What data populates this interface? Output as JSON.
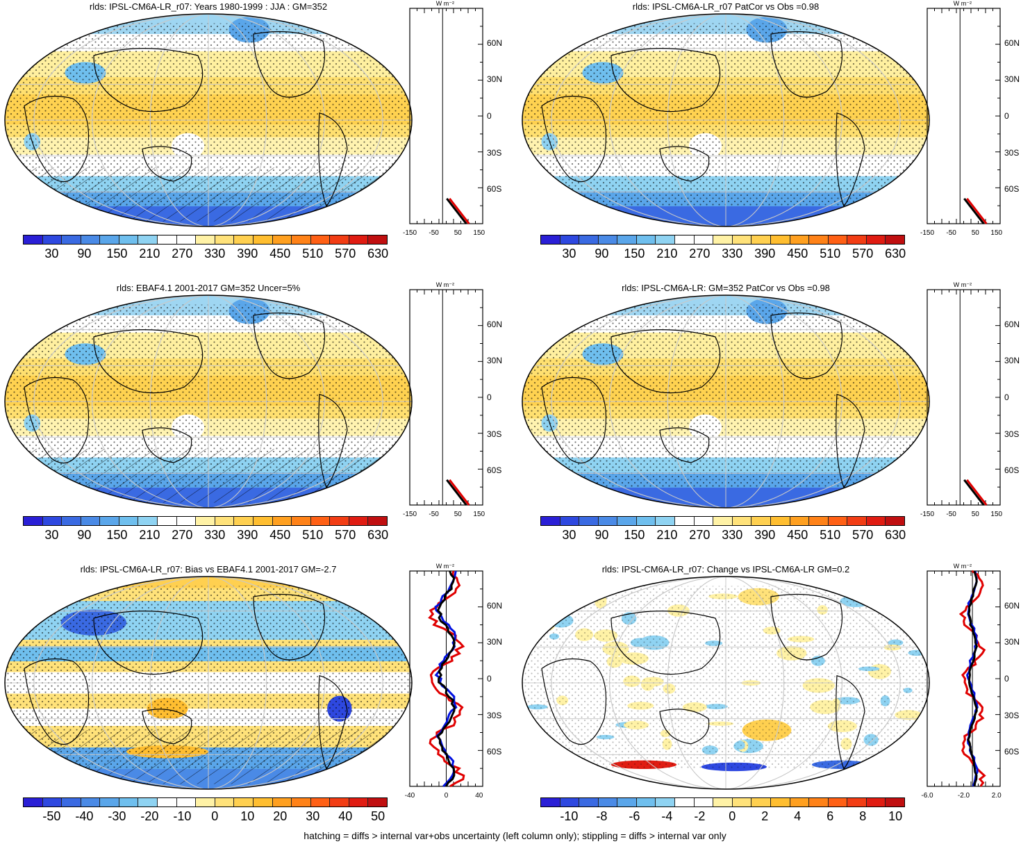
{
  "footer": "hatching = diffs > internal var+obs uncertainty (left column only); stippling = diffs > internal var only",
  "profile_unit": "W m⁻²",
  "lat_labels": [
    "60N",
    "30N",
    "0",
    "30S",
    "60S"
  ],
  "colors": {
    "abs_scale": [
      "#2a1fd6",
      "#2e48e0",
      "#3a6ae2",
      "#4a8ae6",
      "#5aa6ea",
      "#6fbfee",
      "#8fd3f2",
      "#ffffff",
      "#ffffff",
      "#fff2a6",
      "#ffe27a",
      "#ffd050",
      "#ffbe30",
      "#ffa020",
      "#ff8218",
      "#ff6015",
      "#f23d14",
      "#e01c12",
      "#c00f10"
    ],
    "bias_scale": [
      "#2a1fd6",
      "#2e48e0",
      "#3a6ae2",
      "#4a8ae6",
      "#5aa6ea",
      "#6fbfee",
      "#8fd3f2",
      "#ffffff",
      "#ffffff",
      "#fff2a6",
      "#ffe27a",
      "#ffd050",
      "#ffbe30",
      "#ffa020",
      "#ff8218",
      "#ff6015",
      "#f23d14",
      "#e01c12",
      "#c00f10"
    ],
    "land_outline": "#000000",
    "grid": "#c8c8c8"
  },
  "panels": [
    {
      "title": "rlds: IPSL-CM6A-LR_r07: Years 1980-1999 : JJA : GM=352",
      "cb_labels": [
        "30",
        "90",
        "150",
        "210",
        "270",
        "330",
        "390",
        "450",
        "510",
        "570",
        "630"
      ],
      "x_ticks": [
        "-150",
        "-50",
        "50",
        "150"
      ],
      "kind": "abs"
    },
    {
      "title": "rlds: IPSL-CM6A-LR_r07 PatCor vs Obs =0.98",
      "cb_labels": [
        "30",
        "90",
        "150",
        "210",
        "270",
        "330",
        "390",
        "450",
        "510",
        "570",
        "630"
      ],
      "x_ticks": [
        "-150",
        "-50",
        "50",
        "150"
      ],
      "kind": "abs"
    },
    {
      "title": "rlds: EBAF4.1 2001-2017 GM=352 Uncer=5%",
      "cb_labels": [
        "30",
        "90",
        "150",
        "210",
        "270",
        "330",
        "390",
        "450",
        "510",
        "570",
        "630"
      ],
      "x_ticks": [
        "-150",
        "-50",
        "50",
        "150"
      ],
      "kind": "abs"
    },
    {
      "title": "rlds: IPSL-CM6A-LR: GM=352 PatCor vs Obs =0.98",
      "cb_labels": [
        "30",
        "90",
        "150",
        "210",
        "270",
        "330",
        "390",
        "450",
        "510",
        "570",
        "630"
      ],
      "x_ticks": [
        "-150",
        "-50",
        "50",
        "150"
      ],
      "kind": "abs"
    },
    {
      "title": "rlds: IPSL-CM6A-LR_r07: Bias vs EBAF4.1 2001-2017 GM=-2.7",
      "cb_labels": [
        "-50",
        "-40",
        "-30",
        "-20",
        "-10",
        "0",
        "10",
        "20",
        "30",
        "40",
        "50"
      ],
      "x_ticks": [
        "-40",
        "0",
        "40"
      ],
      "kind": "bias"
    },
    {
      "title": "rlds: IPSL-CM6A-LR_r07: Change vs IPSL-CM6A-LR GM=0.2",
      "cb_labels": [
        "-10",
        "-8",
        "-6",
        "-4",
        "-2",
        "0",
        "2",
        "4",
        "6",
        "8",
        "10"
      ],
      "x_ticks": [
        "-6.0",
        "-2.0",
        "2.0"
      ],
      "kind": "change"
    }
  ]
}
